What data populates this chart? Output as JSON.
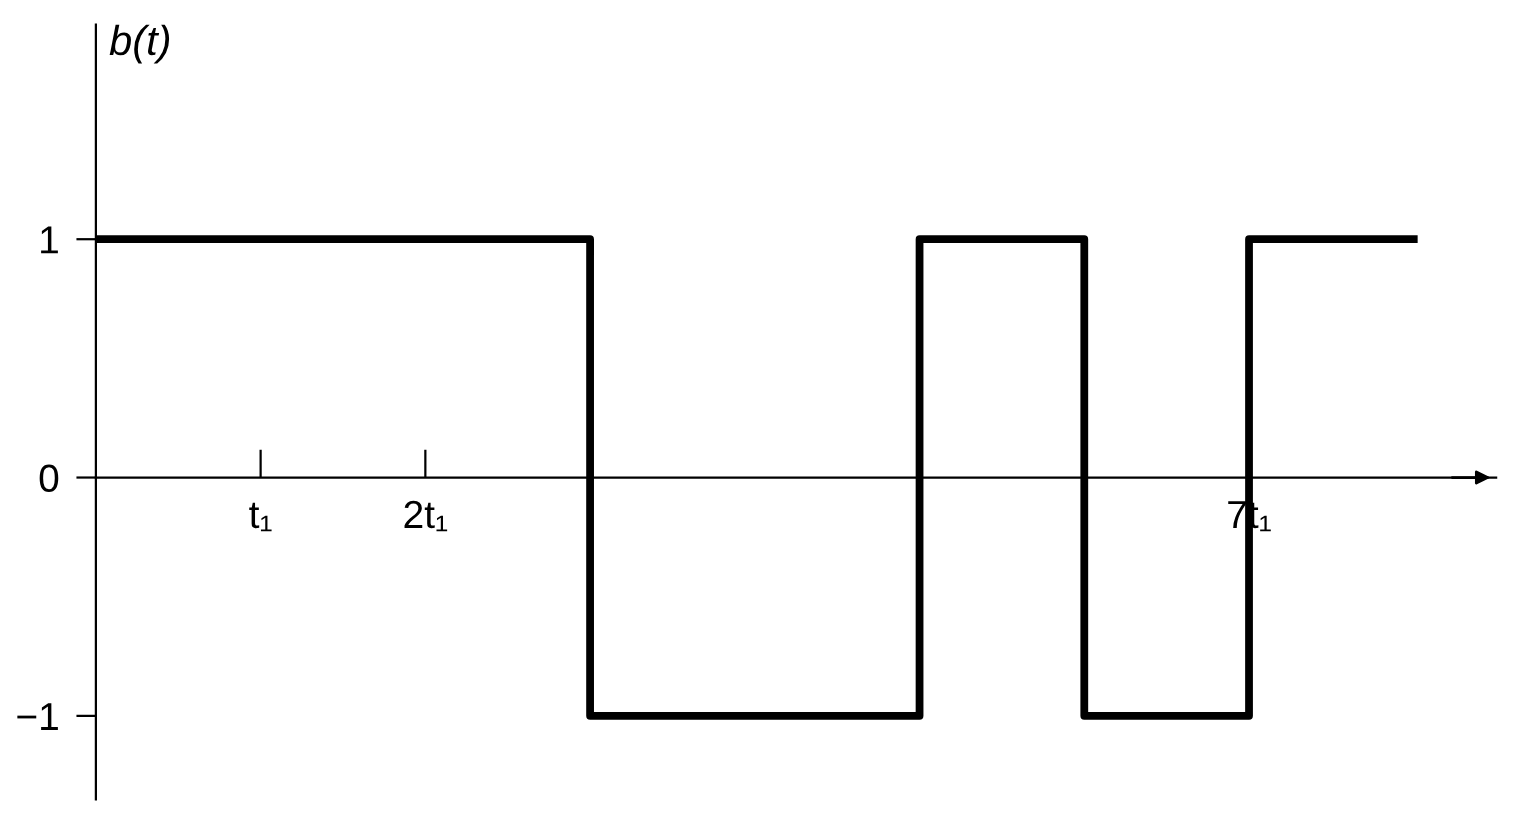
{
  "chart_data": {
    "type": "step",
    "ylabel": "b(t)",
    "categories": [
      null,
      "t₁",
      "2t₁",
      null,
      null,
      null,
      null,
      "7t₁",
      null
    ],
    "series": [
      {
        "color": "#000000",
        "values": [
          1,
          1,
          1,
          -1,
          -1,
          1,
          -1,
          1,
          1
        ]
      }
    ],
    "ylim": [
      -1.35,
      1.9
    ],
    "yticks": [
      {
        "value": -1,
        "label": "−1"
      },
      0,
      1
    ],
    "grid": false,
    "legend": false
  }
}
